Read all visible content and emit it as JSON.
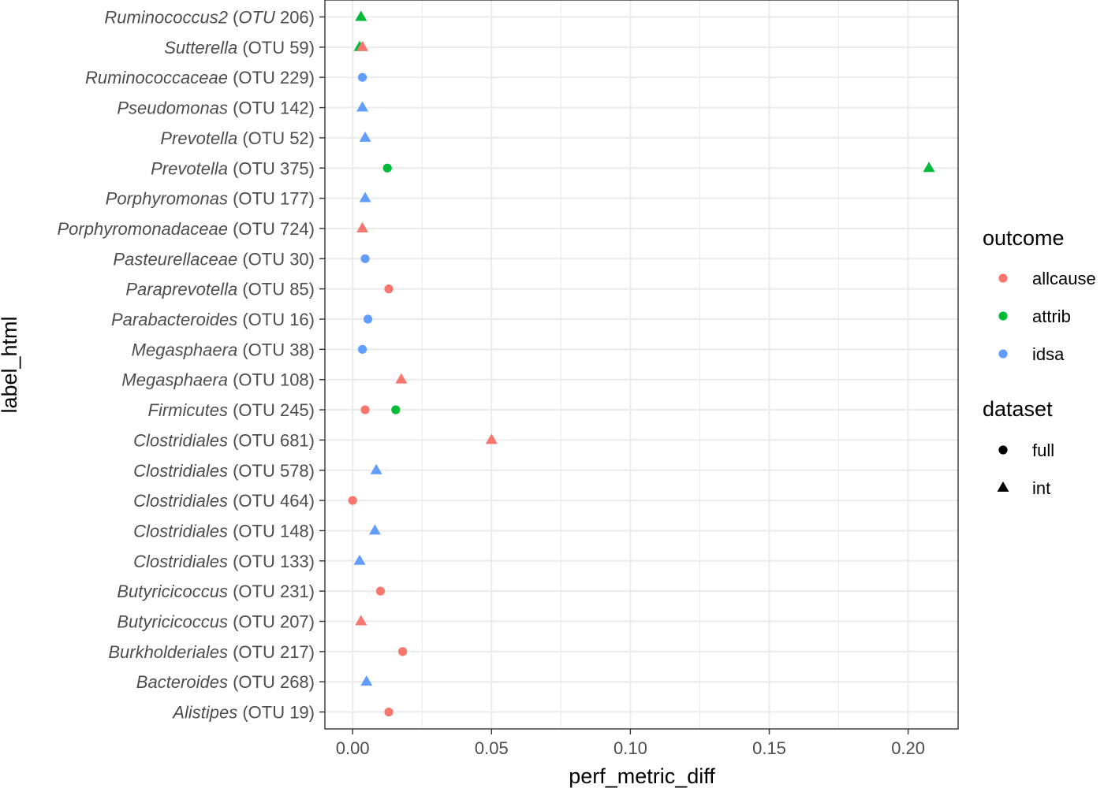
{
  "chart_data": {
    "type": "scatter",
    "title": "",
    "xlabel": "perf_metric_diff",
    "ylabel": "label_html",
    "xlim": [
      -0.01,
      0.218
    ],
    "x_ticks": [
      "0.00",
      "0.05",
      "0.10",
      "0.15",
      "0.20"
    ],
    "x_tick_values": [
      0,
      0.05,
      0.1,
      0.15,
      0.2
    ],
    "grid": true,
    "legend_position": "right",
    "categories": [
      {
        "italic": "Ruminococcus2",
        "rest": " (",
        "italic2": "OTU",
        "rest2": " 206)"
      },
      {
        "italic": "Sutterella",
        "rest": " (OTU 59)"
      },
      {
        "italic": "Ruminococcaceae",
        "rest": " (OTU 229)"
      },
      {
        "italic": "Pseudomonas",
        "rest": " (OTU 142)"
      },
      {
        "italic": "Prevotella",
        "rest": " (OTU 52)"
      },
      {
        "italic": "Prevotella",
        "rest": " (OTU 375)"
      },
      {
        "italic": "Porphyromonas",
        "rest": " (OTU 177)"
      },
      {
        "italic": "Porphyromonadaceae",
        "rest": " (OTU 724)"
      },
      {
        "italic": "Pasteurellaceae",
        "rest": " (OTU 30)"
      },
      {
        "italic": "Paraprevotella",
        "rest": " (OTU 85)"
      },
      {
        "italic": "Parabacteroides",
        "rest": " (OTU 16)"
      },
      {
        "italic": "Megasphaera",
        "rest": " (OTU 38)"
      },
      {
        "italic": "Megasphaera",
        "rest": " (OTU 108)"
      },
      {
        "italic": "Firmicutes",
        "rest": " (OTU 245)"
      },
      {
        "italic": "Clostridiales",
        "rest": " (OTU 681)"
      },
      {
        "italic": "Clostridiales",
        "rest": " (OTU 578)"
      },
      {
        "italic": "Clostridiales",
        "rest": " (OTU 464)"
      },
      {
        "italic": "Clostridiales",
        "rest": " (OTU 148)"
      },
      {
        "italic": "Clostridiales",
        "rest": " (OTU 133)"
      },
      {
        "italic": "Butyricicoccus",
        "rest": " (OTU 231)"
      },
      {
        "italic": "Butyricicoccus",
        "rest": " (OTU 207)"
      },
      {
        "italic": "Burkholderiales",
        "rest": " (OTU 217)"
      },
      {
        "italic": "Bacteroides",
        "rest": " (OTU 268)"
      },
      {
        "italic": "Alistipes",
        "rest": " (OTU 19)"
      }
    ],
    "points": [
      {
        "row": 0,
        "x": 0.003,
        "outcome": "attrib",
        "dataset": "int"
      },
      {
        "row": 1,
        "x": 0.0025,
        "outcome": "attrib",
        "dataset": "int"
      },
      {
        "row": 1,
        "x": 0.0035,
        "outcome": "allcause",
        "dataset": "int"
      },
      {
        "row": 2,
        "x": 0.0035,
        "outcome": "idsa",
        "dataset": "full"
      },
      {
        "row": 3,
        "x": 0.0035,
        "outcome": "idsa",
        "dataset": "int"
      },
      {
        "row": 4,
        "x": 0.0045,
        "outcome": "idsa",
        "dataset": "int"
      },
      {
        "row": 5,
        "x": 0.0125,
        "outcome": "attrib",
        "dataset": "full"
      },
      {
        "row": 5,
        "x": 0.2075,
        "outcome": "attrib",
        "dataset": "int"
      },
      {
        "row": 6,
        "x": 0.0045,
        "outcome": "idsa",
        "dataset": "int"
      },
      {
        "row": 7,
        "x": 0.0035,
        "outcome": "allcause",
        "dataset": "int"
      },
      {
        "row": 8,
        "x": 0.0045,
        "outcome": "idsa",
        "dataset": "full"
      },
      {
        "row": 9,
        "x": 0.013,
        "outcome": "allcause",
        "dataset": "full"
      },
      {
        "row": 10,
        "x": 0.0055,
        "outcome": "idsa",
        "dataset": "full"
      },
      {
        "row": 11,
        "x": 0.0035,
        "outcome": "idsa",
        "dataset": "full"
      },
      {
        "row": 12,
        "x": 0.0175,
        "outcome": "allcause",
        "dataset": "int"
      },
      {
        "row": 13,
        "x": 0.0045,
        "outcome": "allcause",
        "dataset": "full"
      },
      {
        "row": 13,
        "x": 0.0155,
        "outcome": "attrib",
        "dataset": "full"
      },
      {
        "row": 14,
        "x": 0.05,
        "outcome": "allcause",
        "dataset": "int"
      },
      {
        "row": 15,
        "x": 0.0085,
        "outcome": "idsa",
        "dataset": "int"
      },
      {
        "row": 16,
        "x": 0.0,
        "outcome": "allcause",
        "dataset": "full"
      },
      {
        "row": 17,
        "x": 0.008,
        "outcome": "idsa",
        "dataset": "int"
      },
      {
        "row": 18,
        "x": 0.0025,
        "outcome": "idsa",
        "dataset": "int"
      },
      {
        "row": 19,
        "x": 0.01,
        "outcome": "allcause",
        "dataset": "full"
      },
      {
        "row": 20,
        "x": 0.003,
        "outcome": "allcause",
        "dataset": "int"
      },
      {
        "row": 21,
        "x": 0.018,
        "outcome": "allcause",
        "dataset": "full"
      },
      {
        "row": 22,
        "x": 0.005,
        "outcome": "idsa",
        "dataset": "int"
      },
      {
        "row": 23,
        "x": 0.013,
        "outcome": "allcause",
        "dataset": "full"
      }
    ],
    "legend": {
      "outcome": {
        "title": "outcome",
        "items": [
          {
            "label": "allcause",
            "color": "#F8766D"
          },
          {
            "label": "attrib",
            "color": "#00BA38"
          },
          {
            "label": "idsa",
            "color": "#619CFF"
          }
        ]
      },
      "dataset": {
        "title": "dataset",
        "items": [
          {
            "label": "full",
            "shape": "circle"
          },
          {
            "label": "int",
            "shape": "triangle"
          }
        ]
      }
    }
  }
}
